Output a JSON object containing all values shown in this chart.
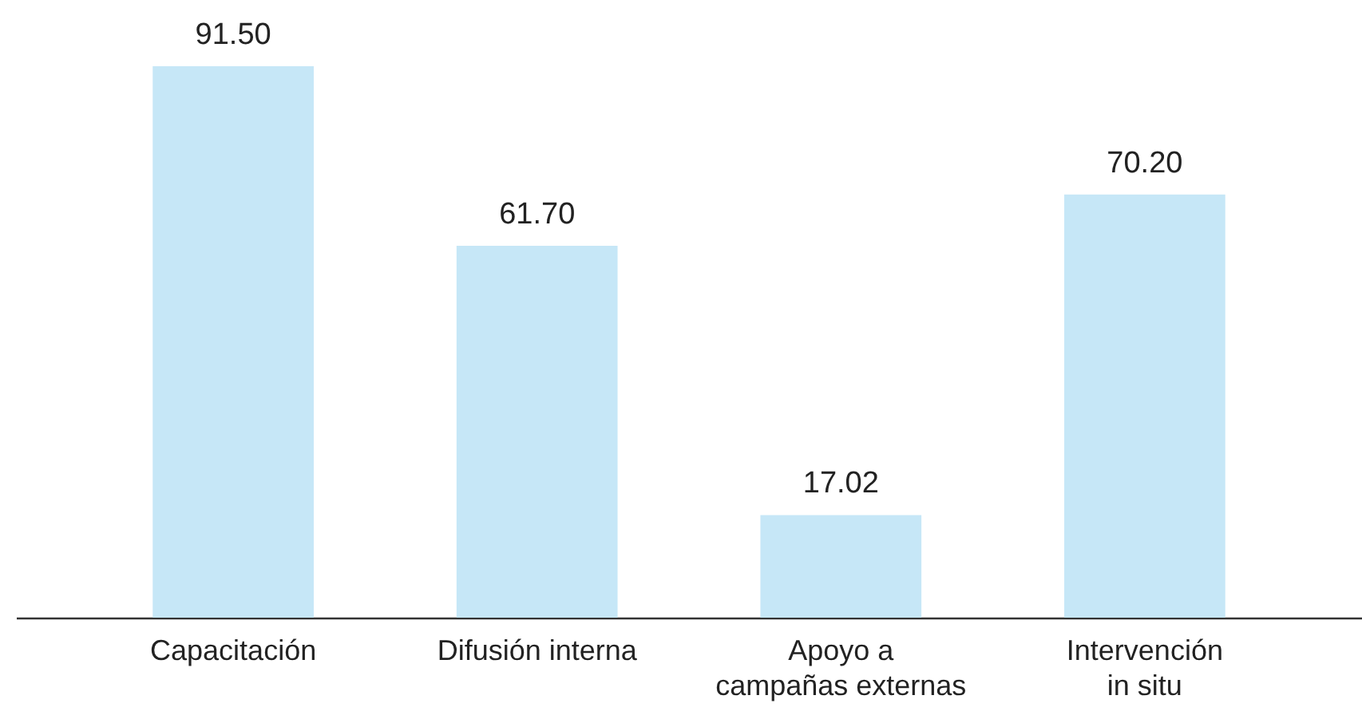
{
  "chart_data": {
    "type": "bar",
    "categories": [
      "Capacitación",
      "Difusión interna",
      "Apoyo a\ncampañas externas",
      "Intervención\nin situ"
    ],
    "values": [
      91.5,
      61.7,
      17.02,
      70.2
    ],
    "value_labels": [
      "91.50",
      "61.70",
      "17.02",
      "70.20"
    ],
    "color": "#c6e7f7",
    "tick_labels": "x"
  }
}
